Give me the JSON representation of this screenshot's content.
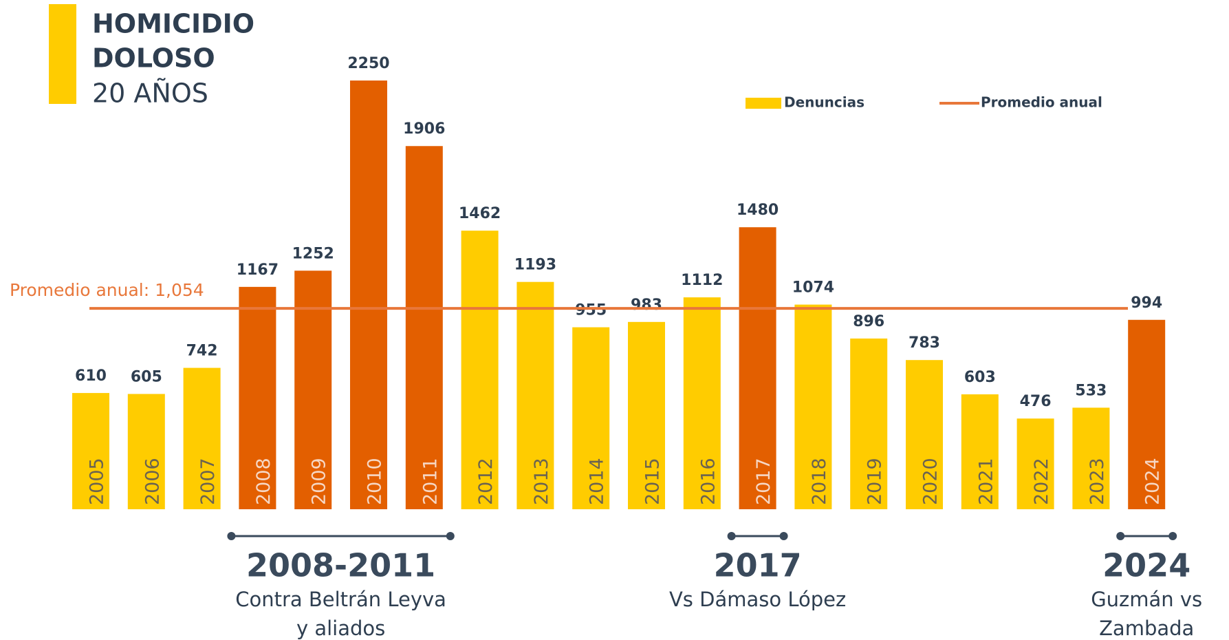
{
  "chart_data": {
    "type": "bar",
    "title": [
      "HOMICIDIO",
      "DOLOSO"
    ],
    "subtitle": "20 AÑOS",
    "categories": [
      "2005",
      "2006",
      "2007",
      "2008",
      "2009",
      "2010",
      "2011",
      "2012",
      "2013",
      "2014",
      "2015",
      "2016",
      "2017",
      "2018",
      "2019",
      "2020",
      "2021",
      "2022",
      "2023",
      "2024"
    ],
    "series": [
      {
        "name": "Denuncias",
        "color": "#FFCC00",
        "values": [
          610,
          605,
          742,
          1167,
          1252,
          2250,
          1906,
          1462,
          1193,
          955,
          983,
          1112,
          1480,
          1074,
          896,
          783,
          603,
          476,
          533,
          994
        ]
      }
    ],
    "bar_colors": [
      "#FFCC00",
      "#FFCC00",
      "#FFCC00",
      "#E35F00",
      "#E35F00",
      "#E35F00",
      "#E35F00",
      "#FFCC00",
      "#FFCC00",
      "#FFCC00",
      "#FFCC00",
      "#FFCC00",
      "#E35F00",
      "#FFCC00",
      "#FFCC00",
      "#FFCC00",
      "#FFCC00",
      "#FFCC00",
      "#FFCC00",
      "#E35F00"
    ],
    "average": {
      "name": "Promedio anual",
      "value": 1054,
      "label": "Promedio anual: 1,054",
      "color": "#E8773A"
    },
    "ylim": [
      0,
      2250
    ],
    "annotations": [
      {
        "label": "2008-2011",
        "text": [
          "Contra Beltrán Leyva",
          "y aliados"
        ],
        "from": "2008",
        "to": "2011"
      },
      {
        "label": "2017",
        "text": [
          "Vs Dámaso López"
        ],
        "from": "2017",
        "to": "2017"
      },
      {
        "label": "2024",
        "text": [
          "Guzmán vs",
          "Zambada"
        ],
        "from": "2024",
        "to": "2024"
      }
    ]
  }
}
